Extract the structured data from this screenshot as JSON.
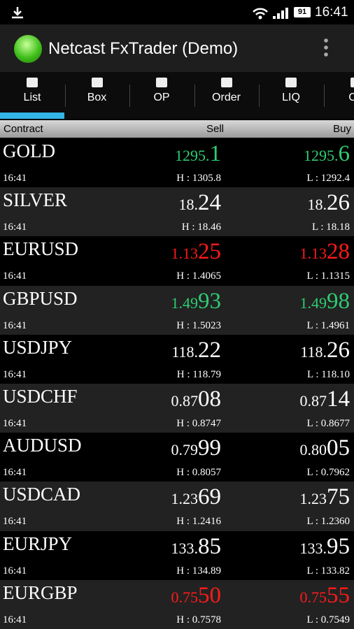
{
  "status_bar": {
    "battery": "91",
    "time": "16:41"
  },
  "app_bar": {
    "title": "Netcast FxTrader  (Demo)"
  },
  "tabs": [
    "List",
    "Box",
    "OP",
    "Order",
    "LIQ",
    "Ch"
  ],
  "table": {
    "header": {
      "contract": "Contract",
      "sell": "Sell",
      "buy": "Buy"
    },
    "rows": [
      {
        "name": "GOLD",
        "time": "16:41",
        "color": "#2ecc71",
        "sell": {
          "small": "1295.",
          "big": "1"
        },
        "buy": {
          "small": "1295.",
          "big": "6"
        },
        "high": "H : 1305.8",
        "low": "L : 1292.4"
      },
      {
        "name": "SILVER",
        "time": "16:41",
        "color": "#ffffff",
        "sell": {
          "small": "18.",
          "big": "24"
        },
        "buy": {
          "small": "18.",
          "big": "26"
        },
        "high": "H : 18.46",
        "low": "L : 18.18"
      },
      {
        "name": "EURUSD",
        "time": "16:41",
        "color": "#ff1a1a",
        "sell": {
          "small": "1.13",
          "big": "25"
        },
        "buy": {
          "small": "1.13",
          "big": "28"
        },
        "high": "H : 1.4065",
        "low": "L : 1.1315"
      },
      {
        "name": "GBPUSD",
        "time": "16:41",
        "color": "#2ecc71",
        "sell": {
          "small": "1.49",
          "big": "93"
        },
        "buy": {
          "small": "1.49",
          "big": "98"
        },
        "high": "H : 1.5023",
        "low": "L : 1.4961"
      },
      {
        "name": "USDJPY",
        "time": "16:41",
        "color": "#ffffff",
        "sell": {
          "small": "118.",
          "big": "22"
        },
        "buy": {
          "small": "118.",
          "big": "26"
        },
        "high": "H : 118.79",
        "low": "L : 118.10"
      },
      {
        "name": "USDCHF",
        "time": "16:41",
        "color": "#ffffff",
        "sell": {
          "small": "0.87",
          "big": "08"
        },
        "buy": {
          "small": "0.87",
          "big": "14"
        },
        "high": "H : 0.8747",
        "low": "L : 0.8677"
      },
      {
        "name": "AUDUSD",
        "time": "16:41",
        "color": "#ffffff",
        "sell": {
          "small": "0.79",
          "big": "99"
        },
        "buy": {
          "small": "0.80",
          "big": "05"
        },
        "high": "H : 0.8057",
        "low": "L : 0.7962"
      },
      {
        "name": "USDCAD",
        "time": "16:41",
        "color": "#ffffff",
        "sell": {
          "small": "1.23",
          "big": "69"
        },
        "buy": {
          "small": "1.23",
          "big": "75"
        },
        "high": "H : 1.2416",
        "low": "L : 1.2360"
      },
      {
        "name": "EURJPY",
        "time": "16:41",
        "color": "#ffffff",
        "sell": {
          "small": "133.",
          "big": "85"
        },
        "buy": {
          "small": "133.",
          "big": "95"
        },
        "high": "H : 134.89",
        "low": "L : 133.82"
      },
      {
        "name": "EURGBP",
        "time": "16:41",
        "color": "#ff1a1a",
        "sell": {
          "small": "0.75",
          "big": "50"
        },
        "buy": {
          "small": "0.75",
          "big": "55"
        },
        "high": "H : 0.7578",
        "low": "L : 0.7549"
      }
    ]
  }
}
